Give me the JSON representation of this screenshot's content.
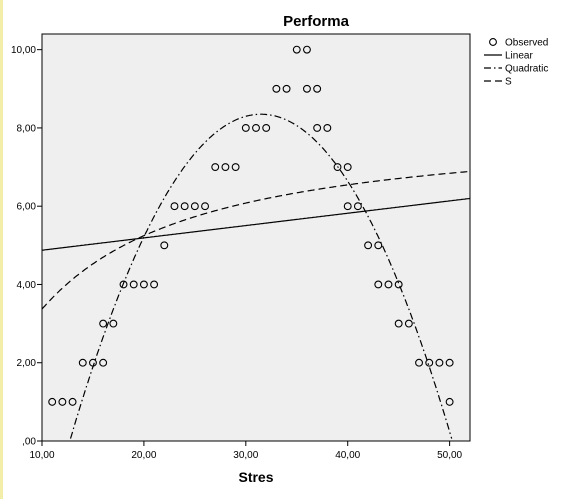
{
  "chart_data": {
    "type": "scatter",
    "title": "Performa",
    "xlabel": "Stres",
    "ylabel": "",
    "xlim": [
      10,
      52
    ],
    "ylim": [
      0,
      10.4
    ],
    "x_ticks": [
      "10,00",
      "20,00",
      "30,00",
      "40,00",
      "50,00"
    ],
    "y_ticks": [
      ",00",
      "2,00",
      "4,00",
      "6,00",
      "8,00",
      "10,00"
    ],
    "grid": false,
    "legend": {
      "position": "right",
      "entries": [
        "Observed",
        "Linear",
        "Quadratic",
        "S"
      ]
    },
    "series": [
      {
        "name": "Observed",
        "kind": "points",
        "points": [
          [
            11,
            1
          ],
          [
            12,
            1
          ],
          [
            13,
            1
          ],
          [
            14,
            2
          ],
          [
            15,
            2
          ],
          [
            16,
            2
          ],
          [
            16,
            3
          ],
          [
            17,
            3
          ],
          [
            18,
            4
          ],
          [
            19,
            4
          ],
          [
            20,
            4
          ],
          [
            21,
            4
          ],
          [
            22,
            5
          ],
          [
            23,
            6
          ],
          [
            24,
            6
          ],
          [
            25,
            6
          ],
          [
            26,
            6
          ],
          [
            27,
            7
          ],
          [
            28,
            7
          ],
          [
            29,
            7
          ],
          [
            30,
            8
          ],
          [
            31,
            8
          ],
          [
            32,
            8
          ],
          [
            33,
            9
          ],
          [
            34,
            9
          ],
          [
            35,
            10
          ],
          [
            36,
            10
          ],
          [
            36,
            9
          ],
          [
            37,
            9
          ],
          [
            37,
            8
          ],
          [
            38,
            8
          ],
          [
            39,
            7
          ],
          [
            40,
            7
          ],
          [
            40,
            6
          ],
          [
            41,
            6
          ],
          [
            42,
            5
          ],
          [
            43,
            5
          ],
          [
            43,
            4
          ],
          [
            44,
            4
          ],
          [
            45,
            4
          ],
          [
            45,
            3
          ],
          [
            46,
            3
          ],
          [
            47,
            2
          ],
          [
            48,
            2
          ],
          [
            49,
            2
          ],
          [
            50,
            2
          ],
          [
            50,
            1
          ]
        ]
      },
      {
        "name": "Linear",
        "kind": "line",
        "model": "linear",
        "intercept": 4.56,
        "slope": 0.0315,
        "dash": ""
      },
      {
        "name": "Quadratic",
        "kind": "line",
        "model": "quadratic",
        "vertex_x": 31.5,
        "vertex_y": 8.35,
        "a": -0.0237,
        "dash": "7,3,1.5,3"
      },
      {
        "name": "S",
        "kind": "line",
        "model": "s",
        "b0": 2.1,
        "b1": -8.85,
        "dash": "7,4"
      }
    ]
  }
}
